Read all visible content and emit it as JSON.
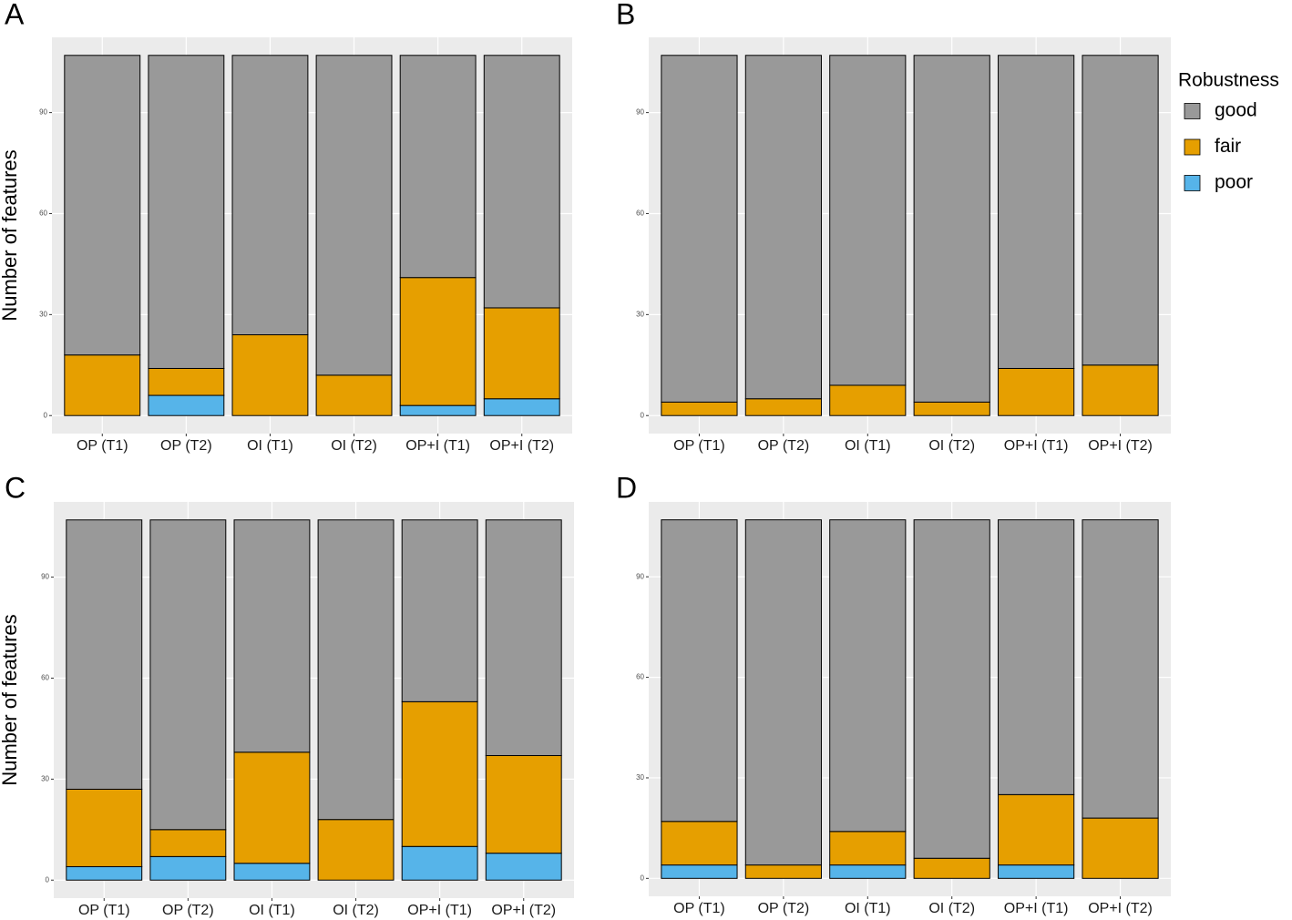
{
  "chart_data": [
    {
      "type": "stacked_bar",
      "title": "A",
      "y_label": "Number of features",
      "categories": [
        "OP (T1)",
        "OP (T2)",
        "OI (T1)",
        "OI (T2)",
        "OP+I (T1)",
        "OP+I (T2)"
      ],
      "series": [
        {
          "name": "good",
          "color": "#999999",
          "values": [
            89,
            93,
            83,
            95,
            66,
            75
          ]
        },
        {
          "name": "fair",
          "color": "#E69F00",
          "values": [
            18,
            8,
            24,
            12,
            38,
            27
          ]
        },
        {
          "name": "poor",
          "color": "#56B4E9",
          "values": [
            0,
            6,
            0,
            0,
            3,
            5
          ]
        }
      ],
      "ylim": [
        -5.35,
        112.35
      ],
      "yticks": [
        0,
        30,
        60,
        90
      ],
      "grid": true
    },
    {
      "type": "stacked_bar",
      "title": "B",
      "legend": "right",
      "legend_title": "Robustness",
      "categories": [
        "OP (T1)",
        "OP (T2)",
        "OI (T1)",
        "OI (T2)",
        "OP+I (T1)",
        "OP+I (T2)"
      ],
      "series": [
        {
          "name": "good",
          "color": "#999999",
          "values": [
            103,
            102,
            98,
            103,
            93,
            92
          ]
        },
        {
          "name": "fair",
          "color": "#E69F00",
          "values": [
            4,
            5,
            9,
            4,
            14,
            15
          ]
        },
        {
          "name": "poor",
          "color": "#56B4E9",
          "values": [
            0,
            0,
            0,
            0,
            0,
            0
          ]
        }
      ],
      "ylim": [
        -5.35,
        112.35
      ],
      "yticks": [
        0,
        30,
        60,
        90
      ],
      "grid": true
    },
    {
      "type": "stacked_bar",
      "title": "C",
      "y_label": "Number of features",
      "categories": [
        "OP (T1)",
        "OP (T2)",
        "OI (T1)",
        "OI (T2)",
        "OP+I (T1)",
        "OP+I (T2)"
      ],
      "series": [
        {
          "name": "good",
          "color": "#999999",
          "values": [
            80,
            92,
            69,
            89,
            54,
            70
          ]
        },
        {
          "name": "fair",
          "color": "#E69F00",
          "values": [
            23,
            8,
            33,
            18,
            43,
            29
          ]
        },
        {
          "name": "poor",
          "color": "#56B4E9",
          "values": [
            4,
            7,
            5,
            0,
            10,
            8
          ]
        }
      ],
      "ylim": [
        -5.35,
        112.35
      ],
      "yticks": [
        0,
        30,
        60,
        90
      ],
      "grid": true
    },
    {
      "type": "stacked_bar",
      "title": "D",
      "categories": [
        "OP (T1)",
        "OP (T2)",
        "OI (T1)",
        "OI (T2)",
        "OP+I (T1)",
        "OP+I (T2)"
      ],
      "series": [
        {
          "name": "good",
          "color": "#999999",
          "values": [
            90,
            103,
            93,
            101,
            82,
            89
          ]
        },
        {
          "name": "fair",
          "color": "#E69F00",
          "values": [
            13,
            4,
            10,
            6,
            21,
            18
          ]
        },
        {
          "name": "poor",
          "color": "#56B4E9",
          "values": [
            4,
            0,
            4,
            0,
            4,
            0
          ]
        }
      ],
      "ylim": [
        -5.35,
        112.35
      ],
      "yticks": [
        0,
        30,
        60,
        90
      ],
      "grid": true
    }
  ]
}
